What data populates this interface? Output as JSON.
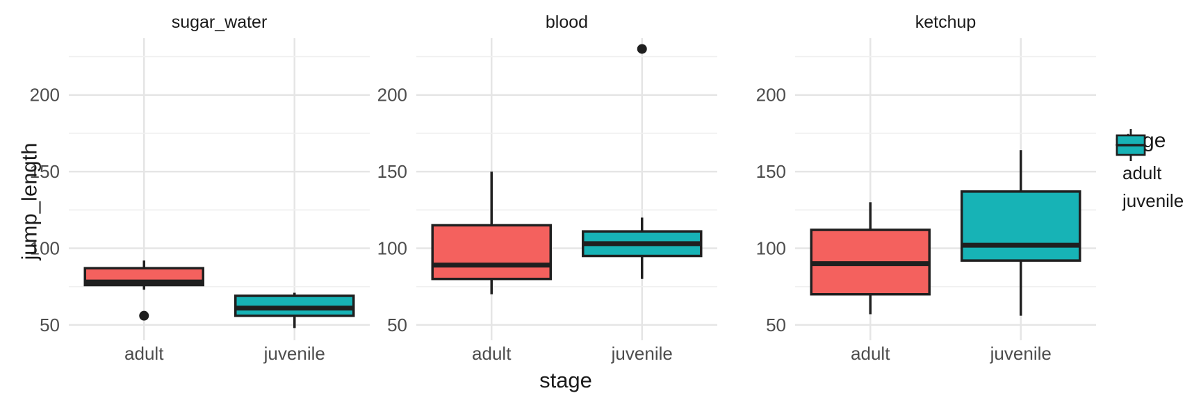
{
  "chart_data": {
    "type": "boxplot",
    "title": "",
    "xlabel": "stage",
    "ylabel": "jump_length",
    "facets": [
      "sugar_water",
      "blood",
      "ketchup"
    ],
    "categories": [
      "adult",
      "juvenile"
    ],
    "y_axis": {
      "major_ticks": [
        50,
        100,
        150,
        200
      ],
      "minor_gridlines": [
        75,
        125,
        175,
        225
      ],
      "visible_range": [
        40,
        237
      ],
      "grid": true
    },
    "legend": {
      "title": "stage",
      "position": "right",
      "items": [
        {
          "label": "adult",
          "color": "#f4615e"
        },
        {
          "label": "juvenile",
          "color": "#17b3b6"
        }
      ]
    },
    "colors": {
      "adult_fill": "#f4615e",
      "juvenile_fill": "#17b3b6",
      "stroke": "#1f1f1f",
      "grid_major": "#e5e5e5",
      "grid_minor": "#f0f0f0",
      "tick_text": "#4d4d4d",
      "title_text": "#1a1a1a"
    },
    "series": [
      {
        "facet": "sugar_water",
        "stage": "adult",
        "whisker_low": 73,
        "q1": 76,
        "median": 78,
        "q3": 87,
        "whisker_high": 92,
        "outliers": [
          56
        ]
      },
      {
        "facet": "sugar_water",
        "stage": "juvenile",
        "whisker_low": 48,
        "q1": 56,
        "median": 61,
        "q3": 69,
        "whisker_high": 71,
        "outliers": []
      },
      {
        "facet": "blood",
        "stage": "adult",
        "whisker_low": 70,
        "q1": 80,
        "median": 89,
        "q3": 115,
        "whisker_high": 150,
        "outliers": []
      },
      {
        "facet": "blood",
        "stage": "juvenile",
        "whisker_low": 80,
        "q1": 95,
        "median": 103,
        "q3": 111,
        "whisker_high": 120,
        "outliers": [
          230
        ]
      },
      {
        "facet": "ketchup",
        "stage": "adult",
        "whisker_low": 57,
        "q1": 70,
        "median": 90,
        "q3": 112,
        "whisker_high": 130,
        "outliers": []
      },
      {
        "facet": "ketchup",
        "stage": "juvenile",
        "whisker_low": 56,
        "q1": 92,
        "median": 102,
        "q3": 137,
        "whisker_high": 164,
        "outliers": []
      }
    ]
  }
}
